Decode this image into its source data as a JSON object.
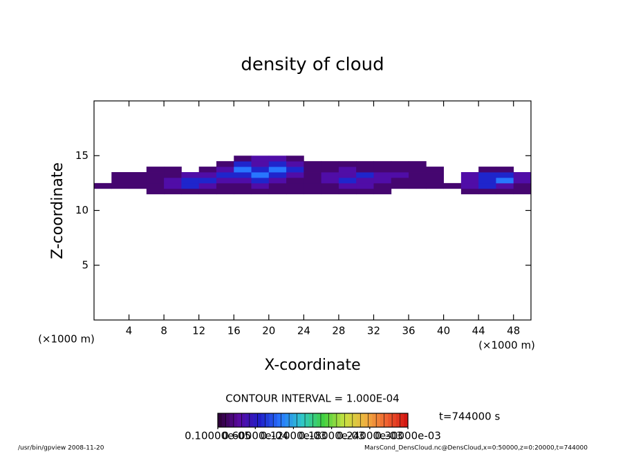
{
  "chart_data": {
    "type": "contour",
    "title": "density of cloud",
    "x_label": "X-coordinate",
    "y_label": "Z-coordinate",
    "x_unit": "(×1000 m)",
    "y_unit": "(×1000 m)",
    "xlim": [
      0,
      50
    ],
    "ylim": [
      0,
      20
    ],
    "xticks": [
      4,
      8,
      12,
      16,
      20,
      24,
      28,
      32,
      36,
      40,
      44,
      48
    ],
    "yticks": [
      5,
      10,
      15
    ],
    "x": [
      1,
      3,
      5,
      7,
      9,
      11,
      13,
      15,
      17,
      19,
      21,
      23,
      25,
      27,
      29,
      31,
      33,
      35,
      37,
      39,
      41,
      43,
      45,
      47,
      49
    ],
    "y": [
      11.75,
      12.25,
      12.75,
      13.25,
      13.75,
      14.25,
      14.75
    ],
    "values": [
      [
        null,
        null,
        null,
        2e-05,
        2e-05,
        2e-05,
        2e-05,
        2e-05,
        2e-05,
        2e-05,
        2e-05,
        2e-05,
        2e-05,
        2e-05,
        2e-05,
        2e-05,
        2e-05,
        null,
        null,
        null,
        null,
        2e-05,
        2e-05,
        2e-05,
        2e-05
      ],
      [
        2e-05,
        2e-05,
        2e-05,
        2e-05,
        4e-05,
        7e-05,
        4e-05,
        2e-05,
        2e-05,
        4e-05,
        2e-05,
        2e-05,
        2e-05,
        2e-05,
        4e-05,
        4e-05,
        2e-05,
        2e-05,
        2e-05,
        2e-05,
        2e-05,
        4e-05,
        7e-05,
        4e-05,
        2e-05
      ],
      [
        null,
        2e-05,
        2e-05,
        2e-05,
        4e-05,
        7e-05,
        7e-05,
        4e-05,
        4e-05,
        7e-05,
        4e-05,
        2e-05,
        2e-05,
        4e-05,
        7e-05,
        4e-05,
        4e-05,
        2e-05,
        2e-05,
        2e-05,
        null,
        4e-05,
        7e-05,
        0.0001,
        4e-05
      ],
      [
        null,
        2e-05,
        2e-05,
        2e-05,
        2e-05,
        4e-05,
        4e-05,
        7e-05,
        7e-05,
        0.0001,
        7e-05,
        4e-05,
        2e-05,
        4e-05,
        4e-05,
        7e-05,
        4e-05,
        4e-05,
        2e-05,
        2e-05,
        null,
        4e-05,
        7e-05,
        7e-05,
        4e-05
      ],
      [
        null,
        null,
        null,
        2e-05,
        2e-05,
        null,
        2e-05,
        4e-05,
        0.0001,
        7e-05,
        0.0001,
        7e-05,
        2e-05,
        2e-05,
        4e-05,
        2e-05,
        2e-05,
        2e-05,
        2e-05,
        2e-05,
        null,
        null,
        2e-05,
        2e-05,
        null
      ],
      [
        null,
        null,
        null,
        null,
        null,
        null,
        null,
        2e-05,
        7e-05,
        4e-05,
        7e-05,
        4e-05,
        2e-05,
        2e-05,
        2e-05,
        2e-05,
        2e-05,
        2e-05,
        2e-05,
        null,
        null,
        null,
        null,
        null,
        null
      ],
      [
        null,
        null,
        null,
        null,
        null,
        null,
        null,
        null,
        2e-05,
        4e-05,
        4e-05,
        2e-05,
        null,
        null,
        null,
        null,
        null,
        null,
        null,
        null,
        null,
        null,
        null,
        null,
        null
      ]
    ],
    "clim": [
      1e-06,
      0.0003
    ],
    "colormap": [
      "#2a0030",
      "#5a0aa0",
      "#1e1ec8",
      "#2878ff",
      "#30c8c8",
      "#40d040",
      "#c8e040",
      "#f0b040",
      "#f06030",
      "#d01010"
    ],
    "contour_note": "CONTOUR INTERVAL = 1.000E-04",
    "colorbar_ticks": [
      {
        "value": 1e-06,
        "label": "0.10000e-05"
      },
      {
        "value": 6e-05,
        "label": "0.60000e-04"
      },
      {
        "value": 0.00012,
        "label": "0.12000e-03"
      },
      {
        "value": 0.00018,
        "label": "0.18000e-03"
      },
      {
        "value": 0.00024,
        "label": "0.24000e-03"
      },
      {
        "value": 0.0003,
        "label": "0.30000e-03"
      }
    ],
    "time_label": "t=744000 s",
    "footer_left": "/usr/bin/gpview   2008-11-20",
    "footer_right": "MarsCond_DensCloud.nc@DensCloud,x=0:50000,z=0:20000,t=744000"
  }
}
